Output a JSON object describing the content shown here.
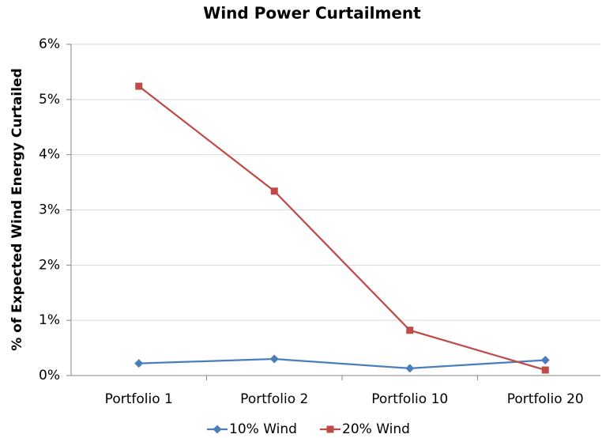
{
  "chart_data": {
    "type": "line",
    "title": "Wind Power Curtailment",
    "y_label": "% of Expected Wind Energy Curtailed",
    "categories": [
      "Portfolio 1",
      "Portfolio 2",
      "Portfolio 10",
      "Portfolio 20"
    ],
    "series": [
      {
        "name": "10% Wind",
        "color": "#4a7ebb",
        "marker": "diamond",
        "values": [
          0.22,
          0.3,
          0.13,
          0.28
        ]
      },
      {
        "name": "20% Wind",
        "color": "#be4b48",
        "marker": "square",
        "values": [
          5.24,
          3.34,
          0.82,
          0.1
        ]
      }
    ],
    "ylim": [
      0,
      6
    ],
    "yticks": [
      {
        "value": 0,
        "label": "0%"
      },
      {
        "value": 1,
        "label": "1%"
      },
      {
        "value": 2,
        "label": "2%"
      },
      {
        "value": 3,
        "label": "3%"
      },
      {
        "value": 4,
        "label": "4%"
      },
      {
        "value": 5,
        "label": "5%"
      },
      {
        "value": 6,
        "label": "6%"
      }
    ],
    "grid": true,
    "legend": "bottom"
  }
}
